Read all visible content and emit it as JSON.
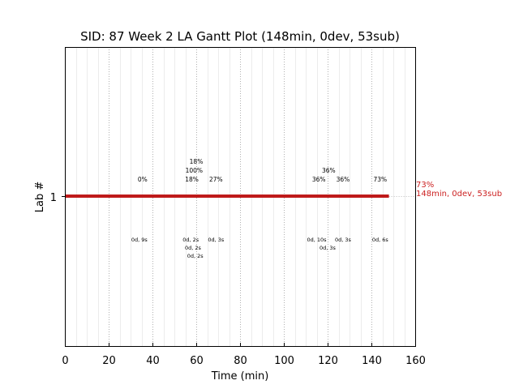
{
  "chart_data": {
    "type": "gantt",
    "title": "SID: 87 Week 2 LA Gantt Plot (148min, 0dev, 53sub)",
    "xlabel": "Time (min)",
    "ylabel": "Lab #",
    "xlim": [
      0,
      160
    ],
    "xticks": [
      0,
      20,
      40,
      60,
      80,
      100,
      120,
      140,
      160
    ],
    "yticks": [
      "1"
    ],
    "grid": true,
    "bar": {
      "lab": "1",
      "start": 0,
      "end": 148,
      "color": "#bf1a1a"
    },
    "bar_label": {
      "line1": "73%",
      "line2": "148min, 0dev, 53sub"
    },
    "top_annotations": [
      {
        "x": 35.5,
        "text": "0%"
      },
      {
        "x": 58,
        "text": "18%"
      },
      {
        "x": 59,
        "text": "100%"
      },
      {
        "x": 60,
        "text": "18%"
      },
      {
        "x": 69,
        "text": "27%"
      },
      {
        "x": 116,
        "text": "36%"
      },
      {
        "x": 120.5,
        "text": "36%"
      },
      {
        "x": 127,
        "text": "36%"
      },
      {
        "x": 144,
        "text": "73%"
      }
    ],
    "bottom_annotations": [
      {
        "x": 34,
        "text": "0d, 9s"
      },
      {
        "x": 57.5,
        "text": "0d, 2s"
      },
      {
        "x": 58.5,
        "text": "0d, 2s"
      },
      {
        "x": 59.5,
        "text": "0d, 2s"
      },
      {
        "x": 69,
        "text": "0d, 3s"
      },
      {
        "x": 115,
        "text": "0d, 10s"
      },
      {
        "x": 120,
        "text": "0d, 3s"
      },
      {
        "x": 127,
        "text": "0d, 3s"
      },
      {
        "x": 144,
        "text": "0d, 6s"
      }
    ]
  }
}
